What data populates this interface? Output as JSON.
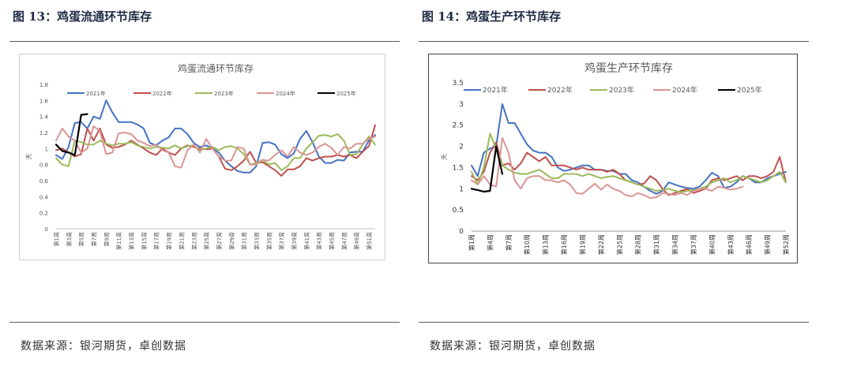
{
  "panels": [
    {
      "figure_title": "图 13：鸡蛋流通环节库存",
      "source": "数据来源：银河期货，卓创数据"
    },
    {
      "figure_title": "图 14：鸡蛋生产环节库存",
      "source": "数据来源：银河期货，卓创数据"
    }
  ],
  "chart_data": [
    {
      "type": "line",
      "title": "鸡蛋流通环节库存",
      "xlabel": "",
      "ylabel": "天",
      "ylim": [
        0,
        1.8
      ],
      "yticks": [
        "0",
        "0.2",
        "0.4",
        "0.6",
        "0.8",
        "1",
        "1.2",
        "1.4",
        "1.6",
        "1.8"
      ],
      "x_tick_labels": [
        "第1周",
        "第3周",
        "第5周",
        "第7周",
        "第9周",
        "第11周",
        "第13周",
        "第15周",
        "第17周",
        "第19周",
        "第21周",
        "第23周",
        "第25周",
        "第27周",
        "第29周",
        "第31周",
        "第33周",
        "第35周",
        "第37周",
        "第39周",
        "第41周",
        "第43周",
        "第45周",
        "第47周",
        "第49周",
        "第51周"
      ],
      "x_count": 52,
      "grid": false,
      "legend_position": "top",
      "series": [
        {
          "name": "2021年",
          "color": "#4472c4",
          "values": [
            0.92,
            0.87,
            1.02,
            1.32,
            1.33,
            1.25,
            1.4,
            1.37,
            1.6,
            1.45,
            1.33,
            1.33,
            1.33,
            1.3,
            1.25,
            1.07,
            1.04,
            1.1,
            1.14,
            1.25,
            1.25,
            1.18,
            1.07,
            1.02,
            1.04,
            1.0,
            0.95,
            0.85,
            0.78,
            0.72,
            0.7,
            0.7,
            0.78,
            1.07,
            1.08,
            1.05,
            0.93,
            0.88,
            0.94,
            1.12,
            1.22,
            1.08,
            0.9,
            0.82,
            0.82,
            0.86,
            0.85,
            0.95,
            0.96,
            0.96,
            1.1,
            1.17
          ]
        },
        {
          "name": "2022年",
          "color": "#c0504d",
          "values": [
            0.98,
            1.0,
            0.95,
            0.9,
            0.93,
            1.25,
            1.1,
            1.25,
            1.05,
            1.01,
            1.02,
            1.05,
            1.1,
            1.05,
            1.0,
            0.95,
            0.92,
            1.0,
            0.95,
            0.92,
            1.0,
            1.04,
            1.02,
            1.0,
            0.99,
            1.0,
            0.9,
            0.75,
            0.73,
            0.78,
            0.85,
            0.96,
            0.82,
            0.83,
            0.78,
            0.73,
            0.66,
            0.74,
            0.74,
            0.78,
            0.88,
            0.85,
            0.88,
            0.9,
            0.9,
            0.92,
            0.9,
            0.92,
            0.88,
            0.96,
            1.03,
            1.29
          ]
        },
        {
          "name": "2023年",
          "color": "#9bbb59",
          "values": [
            0.88,
            0.8,
            0.78,
            1.1,
            1.08,
            1.05,
            1.05,
            1.1,
            1.06,
            1.04,
            1.06,
            1.06,
            1.08,
            1.04,
            1.02,
            1.0,
            1.02,
            1.01,
            1.0,
            1.04,
            1.0,
            1.03,
            1.04,
            0.98,
            1.0,
            1.02,
            0.98,
            1.02,
            1.03,
            1.0,
            0.93,
            0.8,
            0.82,
            0.86,
            0.8,
            0.82,
            0.73,
            0.78,
            0.88,
            0.88,
            1.0,
            1.08,
            1.16,
            1.17,
            1.15,
            1.18,
            1.1,
            0.92,
            0.93,
            1.05,
            1.15,
            1.05
          ]
        },
        {
          "name": "2024年",
          "color": "#d99594",
          "values": [
            1.1,
            1.25,
            1.15,
            1.1,
            0.95,
            1.0,
            1.28,
            1.22,
            0.93,
            0.95,
            1.19,
            1.2,
            1.18,
            1.1,
            1.07,
            1.03,
            1.05,
            0.98,
            0.95,
            0.78,
            0.76,
            0.98,
            1.05,
            0.95,
            1.12,
            1.0,
            0.9,
            0.85,
            0.85,
            1.02,
            1.0,
            0.8,
            0.8,
            0.86,
            0.85,
            0.92,
            0.98,
            0.9,
            1.02,
            0.95,
            0.92,
            0.95,
            1.02,
            1.06,
            1.01,
            0.92,
            1.02,
            1.0,
            1.06,
            1.06,
            1.12,
            1.15
          ]
        },
        {
          "name": "2025年",
          "color": "#000000",
          "values": [
            1.05,
            0.97,
            0.95,
            0.92,
            1.42,
            1.43
          ]
        }
      ]
    },
    {
      "type": "line",
      "title": "鸡蛋生产环节库存",
      "xlabel": "",
      "ylabel": "天",
      "ylim": [
        0,
        3.5
      ],
      "yticks": [
        "0",
        "0.5",
        "1",
        "1.5",
        "2",
        "2.5",
        "3",
        "3.5"
      ],
      "x_tick_labels": [
        "第1周",
        "第4周",
        "第7周",
        "第10周",
        "第13周",
        "第16周",
        "第19周",
        "第22周",
        "第25周",
        "第28周",
        "第31周",
        "第34周",
        "第37周",
        "第40周",
        "第43周",
        "第46周",
        "第49周",
        "第52周"
      ],
      "x_count": 52,
      "grid": false,
      "legend_position": "top",
      "series": [
        {
          "name": "2021年",
          "color": "#4472c4",
          "values": [
            1.55,
            1.3,
            1.85,
            1.95,
            2.0,
            3.0,
            2.55,
            2.55,
            2.3,
            2.05,
            1.9,
            1.85,
            1.85,
            1.75,
            1.5,
            1.42,
            1.45,
            1.5,
            1.55,
            1.55,
            1.45,
            1.45,
            1.42,
            1.42,
            1.35,
            1.35,
            1.2,
            1.15,
            1.05,
            0.95,
            0.88,
            0.95,
            1.15,
            1.1,
            1.05,
            1.02,
            1.0,
            1.05,
            1.2,
            1.38,
            1.3,
            1.02,
            1.05,
            1.15,
            1.3,
            1.25,
            1.15,
            1.15,
            1.25,
            1.3,
            1.35,
            1.4
          ]
        },
        {
          "name": "2022年",
          "color": "#c0504d",
          "values": [
            1.3,
            1.2,
            1.4,
            1.85,
            2.1,
            1.55,
            1.6,
            1.45,
            1.6,
            1.85,
            1.75,
            1.65,
            1.75,
            1.55,
            1.55,
            1.55,
            1.5,
            1.45,
            1.5,
            1.45,
            1.45,
            1.45,
            1.4,
            1.45,
            1.35,
            1.2,
            1.15,
            1.1,
            1.12,
            1.3,
            1.2,
            1.0,
            0.85,
            0.9,
            0.95,
            1.0,
            0.9,
            0.95,
            1.0,
            1.2,
            1.25,
            1.2,
            1.25,
            1.3,
            1.2,
            1.3,
            1.3,
            1.25,
            1.3,
            1.4,
            1.75,
            1.15
          ]
        },
        {
          "name": "2023年",
          "color": "#9bbb59",
          "values": [
            1.4,
            1.1,
            1.5,
            2.3,
            1.95,
            1.55,
            1.45,
            1.38,
            1.35,
            1.35,
            1.4,
            1.45,
            1.35,
            1.25,
            1.25,
            1.35,
            1.35,
            1.35,
            1.3,
            1.35,
            1.3,
            1.25,
            1.28,
            1.3,
            1.25,
            1.2,
            1.15,
            1.1,
            1.05,
            1.0,
            0.95,
            0.98,
            1.0,
            0.95,
            0.92,
            0.95,
            0.97,
            1.0,
            1.05,
            1.15,
            1.2,
            1.25,
            1.15,
            1.2,
            1.3,
            1.25,
            1.2,
            1.15,
            1.2,
            1.3,
            1.4,
            1.15
          ]
        },
        {
          "name": "2024年",
          "color": "#d99594",
          "values": [
            1.2,
            1.1,
            1.3,
            1.1,
            1.05,
            2.2,
            1.85,
            1.2,
            1.0,
            1.25,
            1.3,
            1.3,
            1.2,
            1.2,
            1.15,
            1.2,
            1.1,
            0.9,
            0.88,
            1.0,
            1.12,
            0.98,
            1.1,
            1.0,
            0.95,
            0.85,
            0.82,
            0.9,
            0.85,
            0.78,
            0.8,
            0.9,
            0.88,
            0.85,
            0.9,
            0.85,
            0.95,
            1.0,
            1.0,
            0.95,
            1.05,
            1.02,
            0.98,
            1.0,
            1.05
          ]
        },
        {
          "name": "2025年",
          "color": "#000000",
          "values": [
            1.0,
            0.97,
            0.93,
            0.95,
            2.0,
            1.35
          ]
        }
      ]
    }
  ]
}
